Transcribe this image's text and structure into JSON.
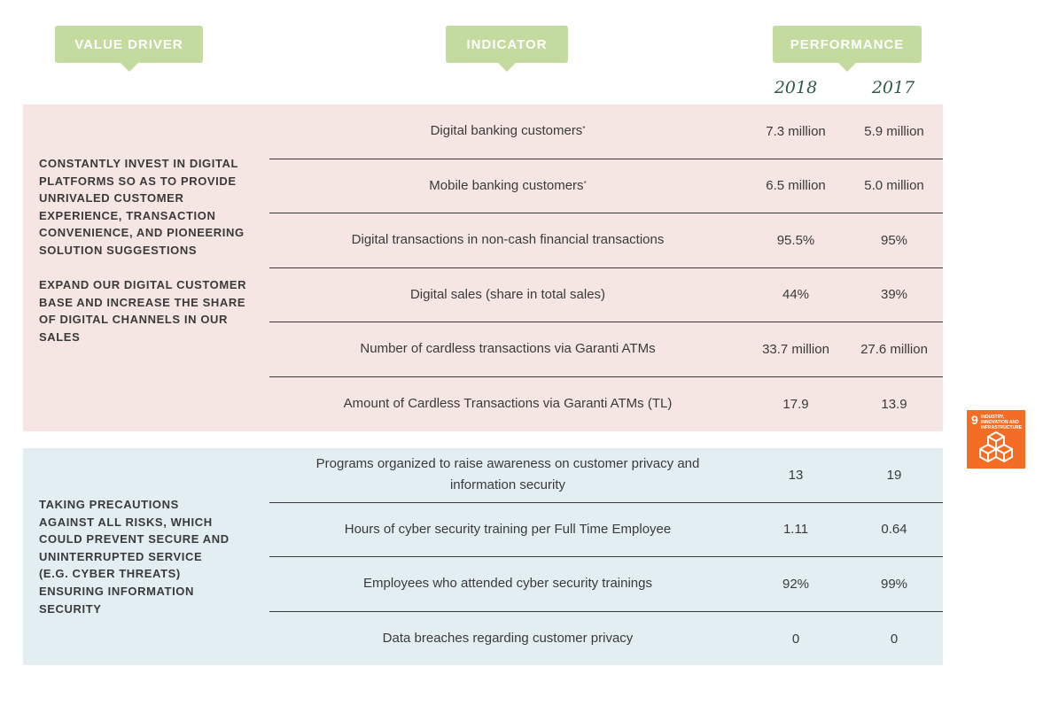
{
  "headers": {
    "value_driver": "VALUE DRIVER",
    "indicator": "INDICATOR",
    "performance": "PERFORMANCE",
    "year_2018": "2018",
    "year_2017": "2017"
  },
  "section1": {
    "driver_paragraphs": [
      "CONSTANTLY INVEST IN DIGITAL PLATFORMS SO AS TO PROVIDE UNRIVALED CUSTOMER EXPERIENCE, TRANSACTION CONVENIENCE, AND PIONEERING SOLUTION SUGGESTIONS",
      "EXPAND OUR DIGITAL CUSTOMER BASE AND INCREASE THE SHARE OF DIGITAL CHANNELS IN OUR SALES"
    ],
    "rows": [
      {
        "indicator": "Digital banking customers",
        "mark": "*",
        "v2018": "7.3 million",
        "v2017": "5.9 million"
      },
      {
        "indicator": "Mobile banking customers",
        "mark": "*",
        "v2018": "6.5 million",
        "v2017": "5.0 million"
      },
      {
        "indicator": "Digital transactions in non-cash financial transactions",
        "mark": "",
        "v2018": "95.5%",
        "v2017": "95%"
      },
      {
        "indicator": "Digital sales (share in total sales)",
        "mark": "",
        "v2018": "44%",
        "v2017": "39%"
      },
      {
        "indicator": "Number of cardless transactions via Garanti ATMs",
        "mark": "",
        "v2018": "33.7 million",
        "v2017": "27.6 million"
      },
      {
        "indicator": "Amount of Cardless Transactions via Garanti ATMs (TL)",
        "mark": "",
        "v2018": "17.9",
        "v2017": "13.9"
      }
    ]
  },
  "section2": {
    "driver_paragraphs": [
      "TAKING PRECAUTIONS AGAINST ALL RISKS, WHICH COULD PREVENT SECURE AND UNINTERRUPTED SERVICE (E.G. CYBER THREATS) ENSURING INFORMATION SECURITY"
    ],
    "rows": [
      {
        "indicator": "Programs organized to raise awareness on customer privacy and information security",
        "mark": "",
        "v2018": "13",
        "v2017": "19"
      },
      {
        "indicator": "Hours of cyber security training per Full Time Employee",
        "mark": "",
        "v2018": "1.11",
        "v2017": "0.64"
      },
      {
        "indicator": "Employees who attended cyber security trainings",
        "mark": "",
        "v2018": "92%",
        "v2017": "99%"
      },
      {
        "indicator": "Data breaches regarding customer privacy",
        "mark": "",
        "v2018": "0",
        "v2017": "0"
      }
    ]
  },
  "sdg_badge": {
    "number": "9",
    "text": "INDUSTRY, INNOVATION AND INFRASTRUCTURE",
    "color": "#f36d25",
    "icon": "cubes-icon"
  }
}
